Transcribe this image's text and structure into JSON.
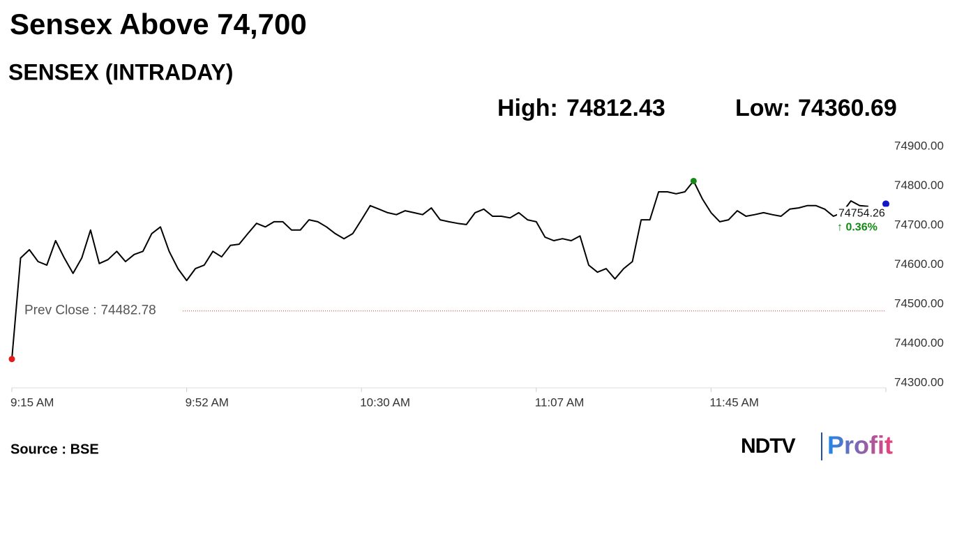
{
  "chart_data": {
    "type": "line",
    "title": "Sensex Above 74,700",
    "subtitle": "SENSEX (INTRADAY)",
    "high_label": "High:",
    "high": 74812.43,
    "low_label": "Low:",
    "low": 74360.69,
    "prev_close_label": "Prev Close :",
    "prev_close": 74482.78,
    "last_value": 74754.26,
    "change": "↑ 0.36%",
    "source": "Source : BSE",
    "brand": [
      "NDTV",
      "Profit"
    ],
    "color": "#000000",
    "categories": [
      "9:15 AM",
      null,
      null,
      null,
      null,
      null,
      null,
      null,
      null,
      null,
      null,
      null,
      null,
      null,
      null,
      null,
      null,
      null,
      null,
      null,
      "9:52 AM",
      null,
      null,
      null,
      null,
      null,
      null,
      null,
      null,
      null,
      null,
      null,
      null,
      null,
      null,
      null,
      null,
      null,
      null,
      null,
      "10:30 AM",
      null,
      null,
      null,
      null,
      null,
      null,
      null,
      null,
      null,
      null,
      null,
      null,
      null,
      null,
      null,
      null,
      null,
      null,
      null,
      "11:07 AM",
      null,
      null,
      null,
      null,
      null,
      null,
      null,
      null,
      null,
      null,
      null,
      null,
      null,
      null,
      null,
      null,
      null,
      null,
      null,
      "11:45 AM",
      null,
      null,
      null,
      null,
      null,
      null,
      null,
      null,
      null,
      null,
      null,
      null,
      null,
      null,
      null,
      null,
      null,
      null,
      null,
      null
    ],
    "values": [
      74360.69,
      74617,
      74638,
      74608,
      74599,
      74661,
      74617,
      74578,
      74617,
      74688,
      74603,
      74613,
      74634,
      74608,
      74626,
      74634,
      74679,
      74696,
      74634,
      74590,
      74560,
      74590,
      74599,
      74634,
      74620,
      74649,
      74652,
      74679,
      74705,
      74696,
      74709,
      74709,
      74688,
      74688,
      74714,
      74709,
      74696,
      74679,
      74666,
      74679,
      74714,
      74750,
      74741,
      74732,
      74727,
      74737,
      74732,
      74727,
      74744,
      74714,
      74709,
      74705,
      74702,
      74732,
      74741,
      74723,
      74723,
      74719,
      74732,
      74714,
      74709,
      74670,
      74661,
      74666,
      74661,
      74673,
      74599,
      74581,
      74590,
      74564,
      74590,
      74608,
      74714,
      74714,
      74785,
      74785,
      74780,
      74785,
      74812.43,
      74767,
      74732,
      74709,
      74714,
      74737,
      74723,
      74727,
      74732,
      74727,
      74723,
      74741,
      74744,
      74750,
      74750,
      74741,
      74723,
      74732,
      74762,
      74750,
      74748,
      null,
      null
    ],
    "ylim": [
      74300,
      74900
    ],
    "yticks": [
      {
        "value": 74300,
        "label": "74300.00"
      },
      {
        "value": 74400,
        "label": "74400.00"
      },
      {
        "value": 74500,
        "label": "74500.00"
      },
      {
        "value": 74600,
        "label": "74600.00"
      },
      {
        "value": 74700,
        "label": "74700.00"
      },
      {
        "value": 74800,
        "label": "74800.00"
      },
      {
        "value": 74900,
        "label": "74900.00"
      }
    ],
    "grid": false
  }
}
